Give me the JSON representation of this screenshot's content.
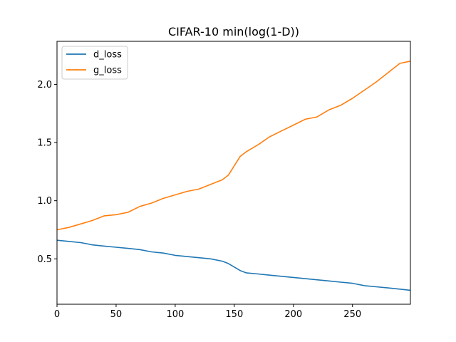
{
  "chart_data": {
    "type": "line",
    "title": "CIFAR-10 min(log(1-D))",
    "xlabel": "",
    "ylabel": "",
    "xlim": [
      0,
      299
    ],
    "ylim": [
      0.11,
      2.37
    ],
    "xticks": [
      0,
      50,
      100,
      150,
      200,
      250
    ],
    "xtick_labels": [
      "0",
      "50",
      "100",
      "150",
      "200",
      "250"
    ],
    "yticks": [
      0.5,
      1.0,
      1.5,
      2.0
    ],
    "ytick_labels": [
      "0.5",
      "1.0",
      "1.5",
      "2.0"
    ],
    "legend_position": "top-left",
    "x": [
      0,
      10,
      20,
      30,
      40,
      50,
      60,
      70,
      80,
      90,
      100,
      110,
      120,
      130,
      140,
      145,
      150,
      155,
      160,
      170,
      180,
      190,
      200,
      210,
      220,
      230,
      240,
      250,
      260,
      270,
      280,
      290,
      299
    ],
    "series": [
      {
        "name": "d_loss",
        "color": "#1f77b4",
        "values": [
          0.66,
          0.65,
          0.64,
          0.62,
          0.61,
          0.6,
          0.59,
          0.58,
          0.56,
          0.55,
          0.53,
          0.52,
          0.51,
          0.5,
          0.48,
          0.46,
          0.43,
          0.4,
          0.38,
          0.37,
          0.36,
          0.35,
          0.34,
          0.33,
          0.32,
          0.31,
          0.3,
          0.29,
          0.27,
          0.26,
          0.25,
          0.24,
          0.23
        ]
      },
      {
        "name": "g_loss",
        "color": "#ff7f0e",
        "values": [
          0.75,
          0.77,
          0.8,
          0.83,
          0.87,
          0.88,
          0.9,
          0.95,
          0.98,
          1.02,
          1.05,
          1.08,
          1.1,
          1.14,
          1.18,
          1.22,
          1.3,
          1.38,
          1.42,
          1.48,
          1.55,
          1.6,
          1.65,
          1.7,
          1.72,
          1.78,
          1.82,
          1.88,
          1.95,
          2.02,
          2.1,
          2.18,
          2.2
        ]
      }
    ]
  }
}
